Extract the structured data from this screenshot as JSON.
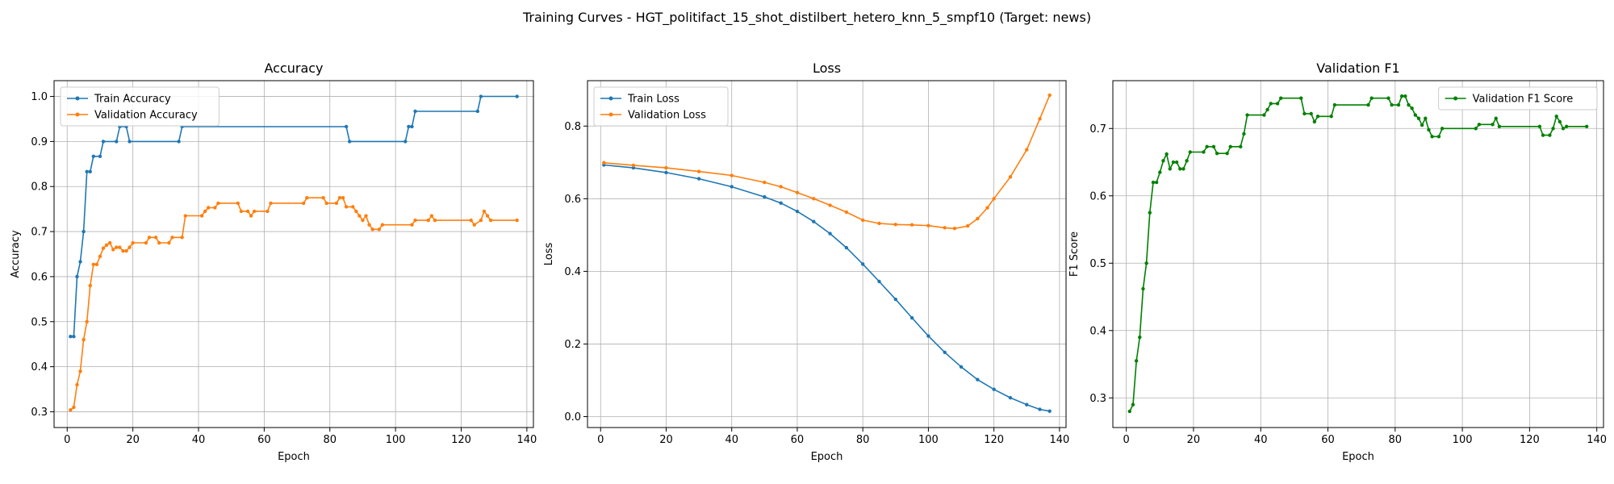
{
  "figure": {
    "suptitle": "Training Curves - HGT_politifact_15_shot_distilbert_hetero_knn_5_smpf10 (Target: news)"
  },
  "chart_data": [
    {
      "type": "line",
      "title": "Accuracy",
      "xlabel": "Epoch",
      "ylabel": "Accuracy",
      "xlim": [
        -4,
        142
      ],
      "ylim": [
        0.265,
        1.035
      ],
      "xticks": [
        0,
        20,
        40,
        60,
        80,
        100,
        120,
        140
      ],
      "yticks": [
        0.3,
        0.4,
        0.5,
        0.6,
        0.7,
        0.8,
        0.9,
        1.0
      ],
      "grid": true,
      "legend_position": "upper-left",
      "series": [
        {
          "name": "Train Accuracy",
          "color": "#1f77b4",
          "points": [
            [
              1,
              0.467
            ],
            [
              2,
              0.467
            ],
            [
              3,
              0.6
            ],
            [
              4,
              0.633
            ],
            [
              5,
              0.7
            ],
            [
              6,
              0.833
            ],
            [
              7,
              0.833
            ],
            [
              8,
              0.867
            ],
            [
              10,
              0.867
            ],
            [
              11,
              0.9
            ],
            [
              15,
              0.9
            ],
            [
              16,
              0.933
            ],
            [
              18,
              0.933
            ],
            [
              19,
              0.9
            ],
            [
              34,
              0.9
            ],
            [
              35,
              0.933
            ],
            [
              85,
              0.933
            ],
            [
              86,
              0.9
            ],
            [
              103,
              0.9
            ],
            [
              104,
              0.933
            ],
            [
              105,
              0.933
            ],
            [
              106,
              0.967
            ],
            [
              125,
              0.967
            ],
            [
              126,
              1.0
            ],
            [
              137,
              1.0
            ]
          ]
        },
        {
          "name": "Validation Accuracy",
          "color": "#ff7f0e",
          "points": [
            [
              1,
              0.304
            ],
            [
              2,
              0.31
            ],
            [
              3,
              0.36
            ],
            [
              4,
              0.39
            ],
            [
              5,
              0.46
            ],
            [
              6,
              0.5
            ],
            [
              7,
              0.58
            ],
            [
              8,
              0.627
            ],
            [
              9,
              0.627
            ],
            [
              10,
              0.645
            ],
            [
              11,
              0.663
            ],
            [
              12,
              0.67
            ],
            [
              13,
              0.675
            ],
            [
              14,
              0.66
            ],
            [
              15,
              0.665
            ],
            [
              16,
              0.665
            ],
            [
              17,
              0.657
            ],
            [
              18,
              0.657
            ],
            [
              19,
              0.665
            ],
            [
              20,
              0.675
            ],
            [
              24,
              0.675
            ],
            [
              25,
              0.687
            ],
            [
              27,
              0.687
            ],
            [
              28,
              0.675
            ],
            [
              31,
              0.675
            ],
            [
              32,
              0.687
            ],
            [
              35,
              0.687
            ],
            [
              36,
              0.735
            ],
            [
              41,
              0.735
            ],
            [
              42,
              0.745
            ],
            [
              43,
              0.753
            ],
            [
              45,
              0.753
            ],
            [
              46,
              0.763
            ],
            [
              52,
              0.763
            ],
            [
              53,
              0.745
            ],
            [
              55,
              0.745
            ],
            [
              56,
              0.735
            ],
            [
              57,
              0.745
            ],
            [
              61,
              0.745
            ],
            [
              62,
              0.763
            ],
            [
              72,
              0.763
            ],
            [
              73,
              0.775
            ],
            [
              78,
              0.775
            ],
            [
              79,
              0.763
            ],
            [
              82,
              0.763
            ],
            [
              83,
              0.775
            ],
            [
              84,
              0.775
            ],
            [
              85,
              0.755
            ],
            [
              87,
              0.755
            ],
            [
              88,
              0.745
            ],
            [
              89,
              0.735
            ],
            [
              90,
              0.725
            ],
            [
              91,
              0.735
            ],
            [
              92,
              0.715
            ],
            [
              93,
              0.705
            ],
            [
              95,
              0.705
            ],
            [
              96,
              0.715
            ],
            [
              105,
              0.715
            ],
            [
              106,
              0.725
            ],
            [
              110,
              0.725
            ],
            [
              111,
              0.735
            ],
            [
              112,
              0.725
            ],
            [
              123,
              0.725
            ],
            [
              124,
              0.715
            ],
            [
              126,
              0.725
            ],
            [
              127,
              0.745
            ],
            [
              128,
              0.735
            ],
            [
              129,
              0.725
            ],
            [
              137,
              0.725
            ]
          ]
        }
      ]
    },
    {
      "type": "line",
      "title": "Loss",
      "xlabel": "Epoch",
      "ylabel": "Loss",
      "xlim": [
        -4,
        142
      ],
      "ylim": [
        -0.03,
        0.925
      ],
      "xticks": [
        0,
        20,
        40,
        60,
        80,
        100,
        120,
        140
      ],
      "yticks": [
        0.0,
        0.2,
        0.4,
        0.6,
        0.8
      ],
      "grid": true,
      "legend_position": "upper-left",
      "series": [
        {
          "name": "Train Loss",
          "color": "#1f77b4",
          "points": [
            [
              1,
              0.693
            ],
            [
              10,
              0.685
            ],
            [
              20,
              0.672
            ],
            [
              30,
              0.655
            ],
            [
              40,
              0.633
            ],
            [
              50,
              0.605
            ],
            [
              55,
              0.588
            ],
            [
              60,
              0.565
            ],
            [
              65,
              0.537
            ],
            [
              70,
              0.504
            ],
            [
              75,
              0.465
            ],
            [
              80,
              0.42
            ],
            [
              85,
              0.372
            ],
            [
              90,
              0.323
            ],
            [
              95,
              0.272
            ],
            [
              100,
              0.222
            ],
            [
              105,
              0.177
            ],
            [
              110,
              0.137
            ],
            [
              115,
              0.102
            ],
            [
              120,
              0.075
            ],
            [
              125,
              0.052
            ],
            [
              130,
              0.033
            ],
            [
              134,
              0.02
            ],
            [
              137,
              0.015
            ]
          ]
        },
        {
          "name": "Validation Loss",
          "color": "#ff7f0e",
          "points": [
            [
              1,
              0.699
            ],
            [
              10,
              0.692
            ],
            [
              20,
              0.685
            ],
            [
              30,
              0.675
            ],
            [
              40,
              0.664
            ],
            [
              50,
              0.645
            ],
            [
              55,
              0.633
            ],
            [
              60,
              0.617
            ],
            [
              65,
              0.6
            ],
            [
              70,
              0.582
            ],
            [
              75,
              0.563
            ],
            [
              80,
              0.541
            ],
            [
              85,
              0.532
            ],
            [
              90,
              0.529
            ],
            [
              95,
              0.528
            ],
            [
              100,
              0.526
            ],
            [
              105,
              0.52
            ],
            [
              108,
              0.518
            ],
            [
              112,
              0.525
            ],
            [
              115,
              0.545
            ],
            [
              118,
              0.575
            ],
            [
              120,
              0.6
            ],
            [
              125,
              0.66
            ],
            [
              130,
              0.735
            ],
            [
              134,
              0.82
            ],
            [
              137,
              0.885
            ]
          ]
        }
      ]
    },
    {
      "type": "line",
      "title": "Validation F1",
      "xlabel": "Epoch",
      "ylabel": "F1 Score",
      "xlim": [
        -4,
        142
      ],
      "ylim": [
        0.256,
        0.771
      ],
      "xticks": [
        0,
        20,
        40,
        60,
        80,
        100,
        120,
        140
      ],
      "yticks": [
        0.3,
        0.4,
        0.5,
        0.6,
        0.7
      ],
      "grid": true,
      "legend_position": "upper-right",
      "series": [
        {
          "name": "Validation F1 Score",
          "color": "#008000",
          "points": [
            [
              1,
              0.28
            ],
            [
              2,
              0.29
            ],
            [
              3,
              0.355
            ],
            [
              4,
              0.39
            ],
            [
              5,
              0.462
            ],
            [
              6,
              0.5
            ],
            [
              7,
              0.575
            ],
            [
              8,
              0.62
            ],
            [
              9,
              0.62
            ],
            [
              10,
              0.635
            ],
            [
              11,
              0.652
            ],
            [
              12,
              0.662
            ],
            [
              13,
              0.64
            ],
            [
              14,
              0.65
            ],
            [
              15,
              0.65
            ],
            [
              16,
              0.64
            ],
            [
              17,
              0.64
            ],
            [
              18,
              0.652
            ],
            [
              19,
              0.665
            ],
            [
              23,
              0.665
            ],
            [
              24,
              0.673
            ],
            [
              26,
              0.673
            ],
            [
              27,
              0.663
            ],
            [
              30,
              0.663
            ],
            [
              31,
              0.673
            ],
            [
              34,
              0.673
            ],
            [
              35,
              0.692
            ],
            [
              36,
              0.72
            ],
            [
              41,
              0.72
            ],
            [
              42,
              0.728
            ],
            [
              43,
              0.737
            ],
            [
              45,
              0.737
            ],
            [
              46,
              0.745
            ],
            [
              52,
              0.745
            ],
            [
              53,
              0.722
            ],
            [
              55,
              0.722
            ],
            [
              56,
              0.71
            ],
            [
              57,
              0.718
            ],
            [
              61,
              0.718
            ],
            [
              62,
              0.735
            ],
            [
              72,
              0.735
            ],
            [
              73,
              0.745
            ],
            [
              78,
              0.745
            ],
            [
              79,
              0.735
            ],
            [
              81,
              0.735
            ],
            [
              82,
              0.748
            ],
            [
              83,
              0.748
            ],
            [
              84,
              0.735
            ],
            [
              85,
              0.73
            ],
            [
              86,
              0.72
            ],
            [
              87,
              0.715
            ],
            [
              88,
              0.705
            ],
            [
              89,
              0.715
            ],
            [
              90,
              0.698
            ],
            [
              91,
              0.688
            ],
            [
              93,
              0.688
            ],
            [
              94,
              0.7
            ],
            [
              104,
              0.7
            ],
            [
              105,
              0.706
            ],
            [
              109,
              0.706
            ],
            [
              110,
              0.715
            ],
            [
              111,
              0.703
            ],
            [
              123,
              0.703
            ],
            [
              124,
              0.69
            ],
            [
              126,
              0.69
            ],
            [
              127,
              0.7
            ],
            [
              128,
              0.718
            ],
            [
              129,
              0.71
            ],
            [
              130,
              0.7
            ],
            [
              131,
              0.703
            ],
            [
              137,
              0.703
            ]
          ]
        }
      ]
    }
  ]
}
